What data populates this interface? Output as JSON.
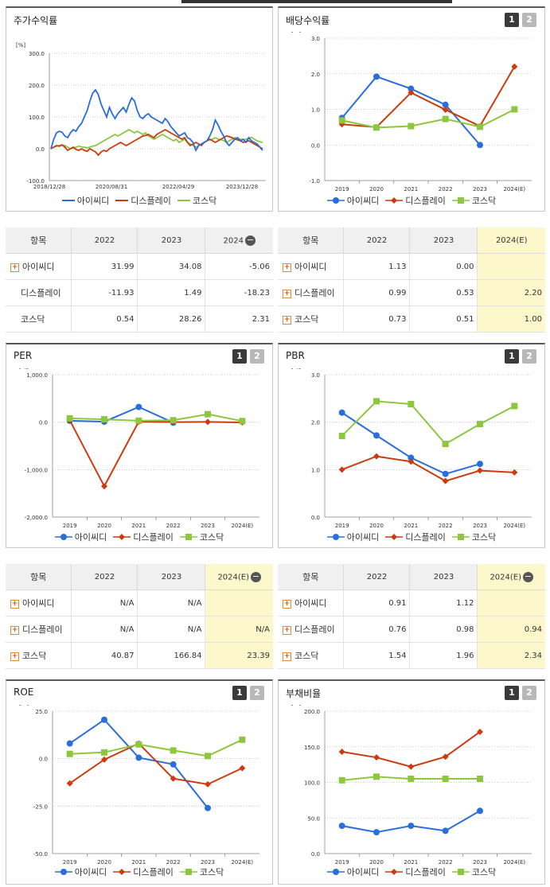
{
  "legend": [
    "아이씨디",
    "디스플레이",
    "코스닥"
  ],
  "colors": {
    "s1": "#2a6edb",
    "s2": "#cc3b0e",
    "s3": "#8dc63f"
  },
  "buttons": {
    "one": "1",
    "two": "2"
  },
  "minus": "−",
  "panels": {
    "stock": {
      "title": "주가수익률",
      "unit": "[%]"
    },
    "div": {
      "title": "배당수익률",
      "unit": "[%]"
    },
    "per": {
      "title": "PER",
      "unit": "[배]"
    },
    "pbr": {
      "title": "PBR",
      "unit": "[배]"
    },
    "roe": {
      "title": "ROE",
      "unit": "[%]"
    },
    "debt": {
      "title": "부채비율",
      "unit": "[%]"
    }
  },
  "tables": {
    "stock": {
      "head": [
        "항목",
        "2022",
        "2023",
        "2024"
      ],
      "rows": [
        {
          "name": "아이씨디",
          "plus": true,
          "v": [
            "31.99",
            "34.08",
            "-5.06"
          ]
        },
        {
          "name": "디스플레이",
          "plus": false,
          "v": [
            "-11.93",
            "1.49",
            "-18.23"
          ]
        },
        {
          "name": "코스닥",
          "plus": false,
          "v": [
            "0.54",
            "28.26",
            "2.31"
          ]
        }
      ]
    },
    "div": {
      "head": [
        "항목",
        "2022",
        "2023",
        "2024(E)"
      ],
      "rows": [
        {
          "name": "아이씨디",
          "plus": true,
          "v": [
            "1.13",
            "0.00",
            ""
          ]
        },
        {
          "name": "디스플레이",
          "plus": true,
          "v": [
            "0.99",
            "0.53",
            "2.20"
          ]
        },
        {
          "name": "코스닥",
          "plus": true,
          "v": [
            "0.73",
            "0.51",
            "1.00"
          ]
        }
      ]
    },
    "per": {
      "head": [
        "항목",
        "2022",
        "2023",
        "2024(E)"
      ],
      "rows": [
        {
          "name": "아이씨디",
          "plus": true,
          "v": [
            "N/A",
            "N/A",
            ""
          ]
        },
        {
          "name": "디스플레이",
          "plus": true,
          "v": [
            "N/A",
            "N/A",
            "N/A"
          ]
        },
        {
          "name": "코스닥",
          "plus": true,
          "v": [
            "40.87",
            "166.84",
            "23.39"
          ]
        }
      ]
    },
    "pbr": {
      "head": [
        "항목",
        "2022",
        "2023",
        "2024(E)"
      ],
      "rows": [
        {
          "name": "아이씨디",
          "plus": true,
          "v": [
            "0.91",
            "1.12",
            ""
          ]
        },
        {
          "name": "디스플레이",
          "plus": true,
          "v": [
            "0.76",
            "0.98",
            "0.94"
          ]
        },
        {
          "name": "코스닥",
          "plus": true,
          "v": [
            "1.54",
            "1.96",
            "2.34"
          ]
        }
      ]
    }
  },
  "chart_data": [
    {
      "id": "stock",
      "type": "line",
      "ylabel": "[%]",
      "ylim": [
        -100,
        300
      ],
      "yticks": [
        "300.0",
        "200.0",
        "100.0",
        "0.0",
        "-100.0"
      ],
      "xlabels": [
        "2018/12/28",
        "2020/08/31",
        "2022/04/29",
        "2023/12/28"
      ],
      "series": [
        {
          "name": "아이씨디",
          "values": [
            0,
            30,
            50,
            55,
            52,
            40,
            35,
            50,
            60,
            55,
            70,
            80,
            100,
            120,
            150,
            175,
            185,
            170,
            140,
            120,
            100,
            130,
            110,
            95,
            110,
            120,
            130,
            115,
            140,
            160,
            150,
            120,
            100,
            95,
            105,
            110,
            100,
            95,
            90,
            85,
            80,
            95,
            85,
            70,
            60,
            50,
            40,
            45,
            50,
            35,
            30,
            20,
            -5,
            10,
            15,
            20,
            25,
            40,
            60,
            90,
            75,
            55,
            40,
            20,
            10,
            20,
            30,
            35,
            25,
            30,
            20,
            35,
            25,
            20,
            15,
            5,
            -5
          ]
        },
        {
          "name": "디스플레이",
          "values": [
            0,
            5,
            10,
            8,
            12,
            5,
            -5,
            0,
            5,
            -2,
            -5,
            0,
            -5,
            -8,
            0,
            -5,
            -10,
            -20,
            -10,
            -5,
            -8,
            0,
            5,
            10,
            15,
            20,
            15,
            10,
            15,
            20,
            25,
            30,
            35,
            40,
            42,
            45,
            40,
            35,
            45,
            50,
            55,
            60,
            55,
            50,
            45,
            40,
            35,
            30,
            35,
            20,
            10,
            15,
            20,
            15,
            10,
            20,
            25,
            30,
            25,
            20,
            25,
            30,
            35,
            40,
            38,
            35,
            30,
            28,
            25,
            20,
            22,
            25,
            20,
            15,
            10,
            5,
            0
          ]
        },
        {
          "name": "코스닥",
          "values": [
            0,
            5,
            8,
            10,
            12,
            10,
            5,
            0,
            2,
            5,
            8,
            6,
            5,
            3,
            5,
            8,
            10,
            15,
            20,
            25,
            30,
            35,
            40,
            45,
            40,
            45,
            50,
            55,
            60,
            55,
            50,
            55,
            50,
            45,
            50,
            40,
            35,
            30,
            35,
            40,
            45,
            40,
            35,
            30,
            25,
            30,
            20,
            25,
            30,
            20,
            15,
            10,
            5,
            10,
            15,
            20,
            25,
            28,
            30,
            35,
            30,
            28,
            26,
            20,
            25,
            30,
            35,
            32,
            30,
            28,
            30,
            33,
            36,
            30,
            25,
            22,
            20
          ]
        }
      ]
    },
    {
      "id": "div",
      "type": "line",
      "ylabel": "[%]",
      "ylim": [
        -1,
        3
      ],
      "yticks": [
        "3.0",
        "2.0",
        "1.0",
        "0.0",
        "-1.0"
      ],
      "categories": [
        "2019",
        "2020",
        "2021",
        "2022",
        "2023",
        "2024(E)"
      ],
      "series": [
        {
          "name": "아이씨디",
          "values": [
            0.76,
            1.92,
            1.58,
            1.13,
            0.0,
            null
          ]
        },
        {
          "name": "디스플레이",
          "values": [
            0.58,
            0.5,
            1.47,
            0.99,
            0.53,
            2.2
          ]
        },
        {
          "name": "코스닥",
          "values": [
            0.69,
            0.49,
            0.53,
            0.73,
            0.51,
            1.0
          ]
        }
      ]
    },
    {
      "id": "per",
      "type": "line",
      "ylabel": "[배]",
      "ylim": [
        -2000,
        1000
      ],
      "yticks": [
        "1,000.0",
        "0.0",
        "-1,000.0",
        "-2,000.0"
      ],
      "categories": [
        "2019",
        "2020",
        "2021",
        "2022",
        "2023",
        "2024(E)"
      ],
      "series": [
        {
          "name": "아이씨디",
          "values": [
            30,
            10,
            320,
            -10,
            null,
            null
          ]
        },
        {
          "name": "디스플레이",
          "values": [
            40,
            -1350,
            10,
            0,
            5,
            -5
          ]
        },
        {
          "name": "코스닥",
          "values": [
            80,
            60,
            30,
            40,
            167,
            23
          ]
        }
      ]
    },
    {
      "id": "pbr",
      "type": "line",
      "ylabel": "[배]",
      "ylim": [
        0,
        3
      ],
      "yticks": [
        "3.0",
        "2.0",
        "1.0",
        "0.0"
      ],
      "categories": [
        "2019",
        "2020",
        "2021",
        "2022",
        "2023",
        "2024(E)"
      ],
      "series": [
        {
          "name": "아이씨디",
          "values": [
            2.2,
            1.72,
            1.25,
            0.91,
            1.12,
            null
          ]
        },
        {
          "name": "디스플레이",
          "values": [
            1.0,
            1.28,
            1.17,
            0.76,
            0.98,
            0.94
          ]
        },
        {
          "name": "코스닥",
          "values": [
            1.71,
            2.44,
            2.38,
            1.54,
            1.96,
            2.34
          ]
        }
      ]
    },
    {
      "id": "roe",
      "type": "line",
      "ylabel": "[%]",
      "ylim": [
        -50,
        25
      ],
      "yticks": [
        "25.0",
        "0.0",
        "-25.0",
        "-50.0"
      ],
      "categories": [
        "2019",
        "2020",
        "2021",
        "2022",
        "2023",
        "2024(E)"
      ],
      "series": [
        {
          "name": "아이씨디",
          "values": [
            8,
            20.5,
            0.5,
            -3,
            -26,
            null
          ]
        },
        {
          "name": "디스플레이",
          "values": [
            -13,
            -0.5,
            8,
            -10.5,
            -13.5,
            -5
          ]
        },
        {
          "name": "코스닥",
          "values": [
            2.5,
            3.3,
            7.5,
            4.3,
            1.4,
            10
          ]
        }
      ]
    },
    {
      "id": "debt",
      "type": "line",
      "ylabel": "[%]",
      "ylim": [
        0,
        200
      ],
      "yticks": [
        "200.0",
        "150.0",
        "100.0",
        "50.0",
        "0.0"
      ],
      "categories": [
        "2019",
        "2020",
        "2021",
        "2022",
        "2023",
        "2024(E)"
      ],
      "series": [
        {
          "name": "아이씨디",
          "values": [
            39,
            30,
            39,
            32,
            60,
            null
          ]
        },
        {
          "name": "디스플레이",
          "values": [
            143,
            135,
            122,
            136,
            171,
            null
          ]
        },
        {
          "name": "코스닥",
          "values": [
            103,
            108,
            105,
            105,
            105,
            null
          ]
        }
      ]
    }
  ]
}
